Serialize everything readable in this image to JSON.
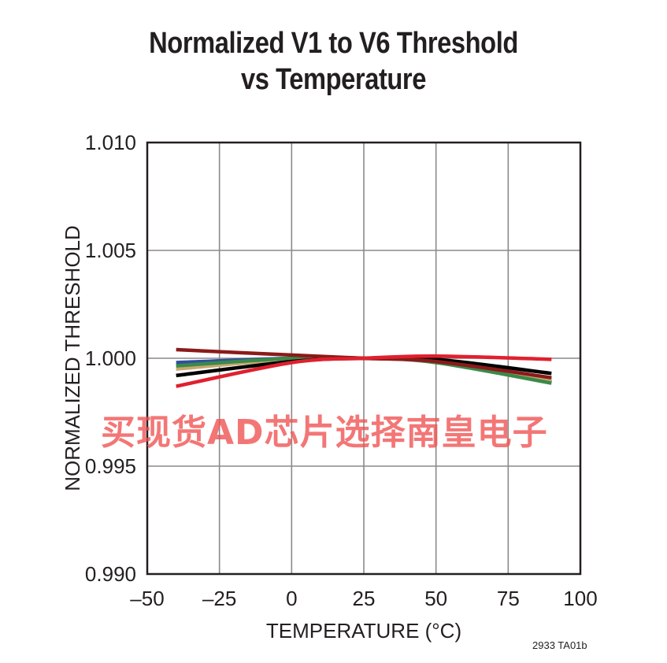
{
  "chart_data": {
    "type": "line",
    "title": "Normalized V1 to V6 Threshold",
    "subtitle": "vs Temperature",
    "xlabel": "TEMPERATURE (°C)",
    "ylabel": "NORMALIZED THRESHOLD",
    "xlim": [
      -50,
      100
    ],
    "ylim": [
      0.99,
      1.01
    ],
    "x_ticks": [
      -50,
      -25,
      0,
      25,
      50,
      75,
      100
    ],
    "x_tick_labels": [
      "–50",
      "–25",
      "0",
      "25",
      "50",
      "75",
      "100"
    ],
    "y_ticks": [
      0.99,
      0.995,
      1.0,
      1.005,
      1.01
    ],
    "y_tick_labels": [
      "0.990",
      "0.995",
      "1.000",
      "1.005",
      "1.010"
    ],
    "grid": true,
    "series": [
      {
        "color": "#2f4fa0",
        "x": [
          -40,
          0,
          25,
          50,
          90
        ],
        "y": [
          0.9998,
          1.0,
          1.0,
          0.99985,
          0.9989
        ]
      },
      {
        "color": "#c8a870",
        "x": [
          -40,
          0,
          25,
          50,
          90
        ],
        "y": [
          0.9995,
          0.99995,
          1.0,
          0.99985,
          0.999
        ]
      },
      {
        "color": "#3a8a4a",
        "x": [
          -40,
          0,
          25,
          50,
          90
        ],
        "y": [
          0.99965,
          1.0,
          1.0,
          0.9998,
          0.99885
        ]
      },
      {
        "color": "#000000",
        "x": [
          -40,
          0,
          25,
          50,
          90
        ],
        "y": [
          0.9992,
          0.99985,
          1.0,
          0.99995,
          0.9993
        ]
      },
      {
        "color": "#8b1a1a",
        "x": [
          -40,
          0,
          25,
          50,
          90
        ],
        "y": [
          1.0004,
          1.00015,
          1.0,
          0.99985,
          0.9991
        ]
      },
      {
        "color": "#e0202e",
        "x": [
          -40,
          0,
          25,
          50,
          90
        ],
        "y": [
          0.9987,
          0.9998,
          1.0,
          1.0001,
          0.99995
        ]
      }
    ]
  },
  "figure_code": "2933 TA01b",
  "watermark": "买现货AD芯片选择南皇电子"
}
